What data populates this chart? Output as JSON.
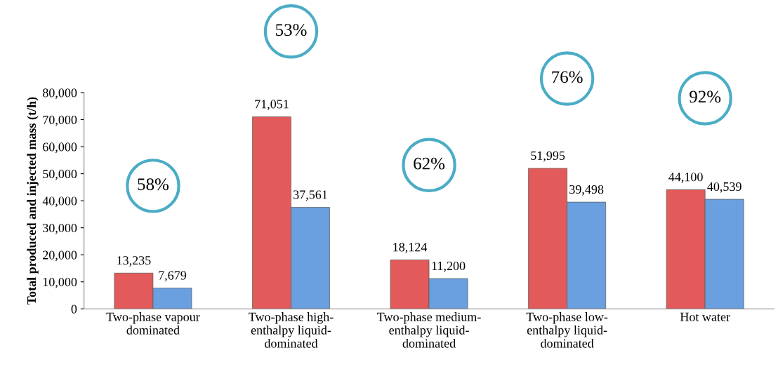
{
  "chart_data": {
    "type": "bar",
    "ylabel": "Total produced and injected mass (t/h)",
    "categories": [
      "Two-phase vapour\ndominated",
      "Two-phase high-\nenthalpy liquid-\ndominated",
      "Two-phase medium-\nenthalpy liquid-\ndominated",
      "Two-phase low-\nenthalpy liquid-\ndominated",
      "Hot water"
    ],
    "series": [
      {
        "color": "#e25a59",
        "values": [
          13235,
          71051,
          18124,
          51995,
          44100
        ],
        "value_labels": [
          "13,235",
          "71,051",
          "18,124",
          "51,995",
          "44,100"
        ]
      },
      {
        "color": "#6a9fe0",
        "values": [
          7679,
          37561,
          11200,
          39498,
          40539
        ],
        "value_labels": [
          "7,679",
          "37,561",
          "11,200",
          "39,498",
          "40,539"
        ]
      }
    ],
    "ylim": [
      0,
      80000
    ],
    "yticks": [
      0,
      {
        "value": 10000,
        "label": "10,000"
      },
      {
        "value": 20000,
        "label": "20,000"
      },
      {
        "value": 30000,
        "label": "30,000"
      },
      {
        "value": 40000,
        "label": "40,000"
      },
      {
        "value": 50000,
        "label": "50,000"
      },
      {
        "value": 60000,
        "label": "60,000"
      },
      {
        "value": 70000,
        "label": "70,000"
      },
      {
        "value": 80000,
        "label": "80,000"
      }
    ],
    "annotations": [
      "58%",
      "53%",
      "62%",
      "76%",
      "92%"
    ],
    "grid": false,
    "legend": false
  }
}
